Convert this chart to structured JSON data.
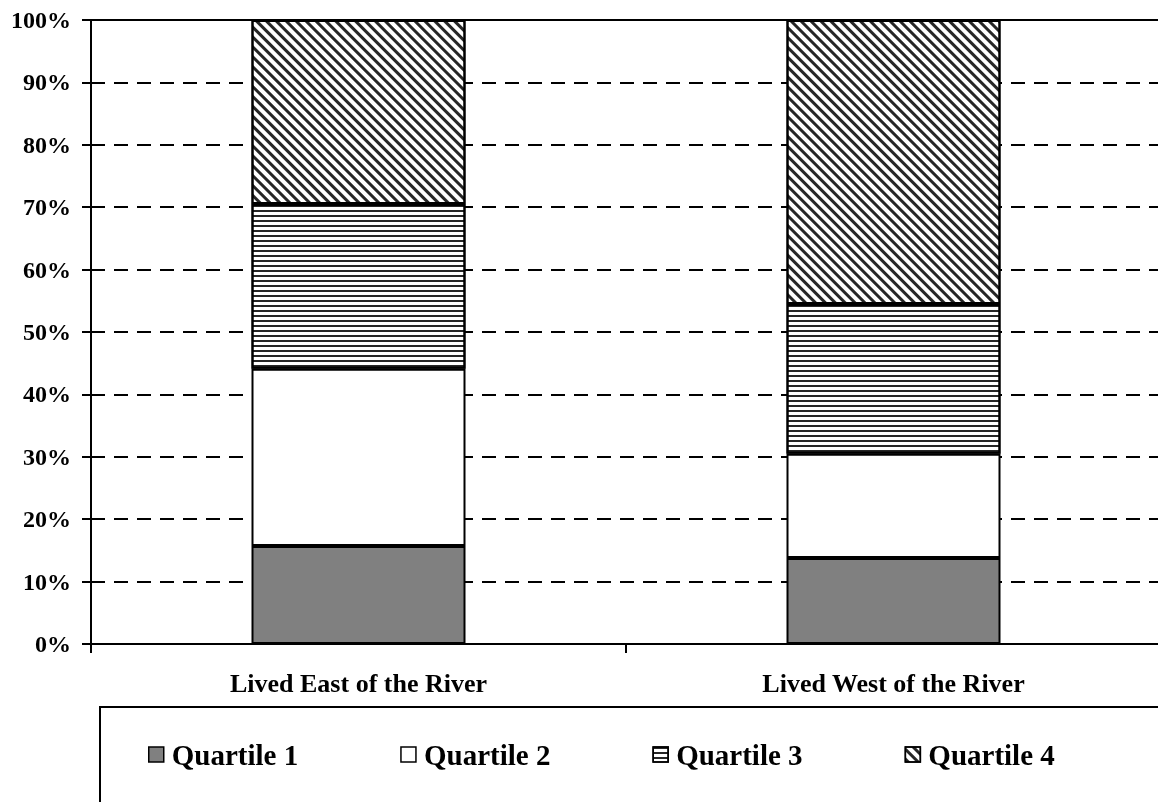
{
  "chart_data": {
    "type": "bar",
    "categories": [
      "Lived East of the River",
      "Lived West of the River"
    ],
    "series": [
      {
        "name": "Quartile 1",
        "color": "#808080",
        "values": [
          15.7,
          13.8
        ]
      },
      {
        "name": "Quartile 2",
        "color": "#ffffff",
        "values": [
          28.4,
          16.7
        ]
      },
      {
        "name": "Quartile 3",
        "color": "#ffffff",
        "values": [
          26.4,
          24.0
        ]
      },
      {
        "name": "Quartile 4",
        "color": "#ffffff",
        "values": [
          29.5,
          45.5
        ]
      }
    ],
    "stacked": true,
    "ylim": [
      0,
      100
    ],
    "yticks": [
      {
        "value": 0,
        "label": "0%"
      },
      {
        "value": 10,
        "label": "10%"
      },
      {
        "value": 20,
        "label": "20%"
      },
      {
        "value": 30,
        "label": "30%"
      },
      {
        "value": 40,
        "label": "40%"
      },
      {
        "value": 50,
        "label": "50%"
      },
      {
        "value": 60,
        "label": "60%"
      },
      {
        "value": 70,
        "label": "70%"
      },
      {
        "value": 80,
        "label": "80%"
      },
      {
        "value": 90,
        "label": "90%"
      },
      {
        "value": 100,
        "label": "100%"
      }
    ],
    "grid": "y",
    "legend": "bottom"
  }
}
